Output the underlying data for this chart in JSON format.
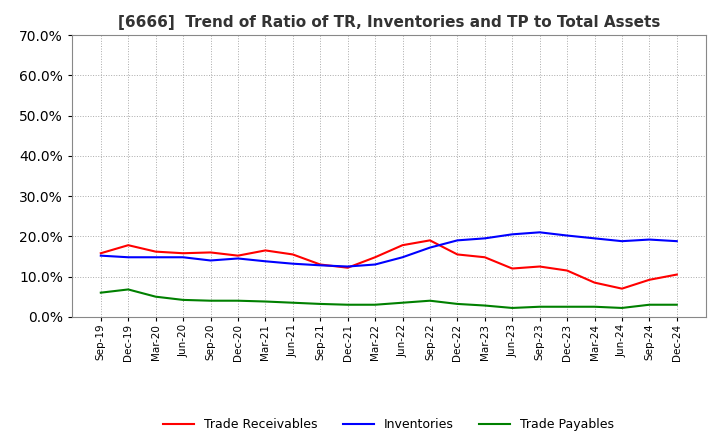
{
  "title": "[6666]  Trend of Ratio of TR, Inventories and TP to Total Assets",
  "xlabels": [
    "Sep-19",
    "Dec-19",
    "Mar-20",
    "Jun-20",
    "Sep-20",
    "Dec-20",
    "Mar-21",
    "Jun-21",
    "Sep-21",
    "Dec-21",
    "Mar-22",
    "Jun-22",
    "Sep-22",
    "Dec-22",
    "Mar-23",
    "Jun-23",
    "Sep-23",
    "Dec-23",
    "Mar-24",
    "Jun-24",
    "Sep-24",
    "Dec-24"
  ],
  "trade_receivables": [
    0.158,
    0.178,
    0.162,
    0.158,
    0.16,
    0.152,
    0.165,
    0.155,
    0.13,
    0.122,
    0.148,
    0.178,
    0.19,
    0.155,
    0.148,
    0.12,
    0.125,
    0.115,
    0.085,
    0.07,
    0.092,
    0.105
  ],
  "inventories": [
    0.152,
    0.148,
    0.148,
    0.148,
    0.14,
    0.145,
    0.138,
    0.132,
    0.128,
    0.125,
    0.13,
    0.148,
    0.172,
    0.19,
    0.195,
    0.205,
    0.21,
    0.202,
    0.195,
    0.188,
    0.192,
    0.188
  ],
  "trade_payables": [
    0.06,
    0.068,
    0.05,
    0.042,
    0.04,
    0.04,
    0.038,
    0.035,
    0.032,
    0.03,
    0.03,
    0.035,
    0.04,
    0.032,
    0.028,
    0.022,
    0.025,
    0.025,
    0.025,
    0.022,
    0.03,
    0.03
  ],
  "tr_color": "#ff0000",
  "inv_color": "#0000ff",
  "tp_color": "#008000",
  "ylim": [
    0.0,
    0.7
  ],
  "yticks": [
    0.0,
    0.1,
    0.2,
    0.3,
    0.4,
    0.5,
    0.6,
    0.7
  ],
  "background_color": "#ffffff",
  "grid_color": "#aaaaaa",
  "title_fontsize": 11
}
